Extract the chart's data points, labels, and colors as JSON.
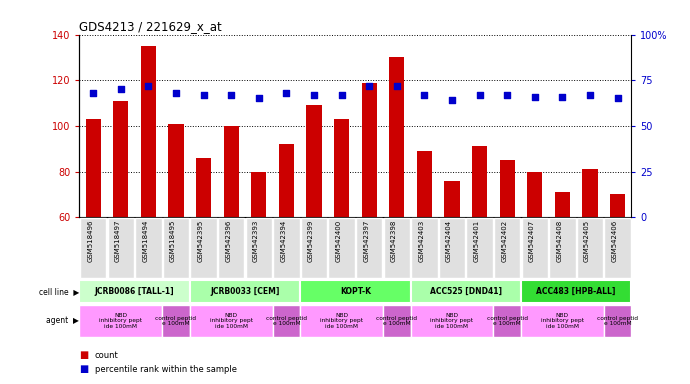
{
  "title": "GDS4213 / 221629_x_at",
  "samples": [
    "GSM518496",
    "GSM518497",
    "GSM518494",
    "GSM518495",
    "GSM542395",
    "GSM542396",
    "GSM542393",
    "GSM542394",
    "GSM542399",
    "GSM542400",
    "GSM542397",
    "GSM542398",
    "GSM542403",
    "GSM542404",
    "GSM542401",
    "GSM542402",
    "GSM542407",
    "GSM542408",
    "GSM542405",
    "GSM542406"
  ],
  "counts": [
    103,
    111,
    135,
    101,
    86,
    100,
    80,
    92,
    109,
    103,
    119,
    130,
    89,
    76,
    91,
    85,
    80,
    71,
    81,
    70
  ],
  "percentiles": [
    68,
    70,
    72,
    68,
    67,
    67,
    65,
    68,
    67,
    67,
    72,
    72,
    67,
    64,
    67,
    67,
    66,
    66,
    67,
    65
  ],
  "cell_lines": [
    {
      "label": "JCRB0086 [TALL-1]",
      "start": 0,
      "end": 4,
      "color": "#ccffcc"
    },
    {
      "label": "JCRB0033 [CEM]",
      "start": 4,
      "end": 8,
      "color": "#aaffaa"
    },
    {
      "label": "KOPT-K",
      "start": 8,
      "end": 12,
      "color": "#66ff66"
    },
    {
      "label": "ACC525 [DND41]",
      "start": 12,
      "end": 16,
      "color": "#aaffaa"
    },
    {
      "label": "ACC483 [HPB-ALL]",
      "start": 16,
      "end": 20,
      "color": "#33dd33"
    }
  ],
  "agents": [
    {
      "label": "NBD\ninhibitory pept\nide 100mM",
      "start": 0,
      "end": 3,
      "color": "#ff99ff"
    },
    {
      "label": "control peptid\ne 100mM",
      "start": 3,
      "end": 4,
      "color": "#cc66cc"
    },
    {
      "label": "NBD\ninhibitory pept\nide 100mM",
      "start": 4,
      "end": 7,
      "color": "#ff99ff"
    },
    {
      "label": "control peptid\ne 100mM",
      "start": 7,
      "end": 8,
      "color": "#cc66cc"
    },
    {
      "label": "NBD\ninhibitory pept\nide 100mM",
      "start": 8,
      "end": 11,
      "color": "#ff99ff"
    },
    {
      "label": "control peptid\ne 100mM",
      "start": 11,
      "end": 12,
      "color": "#cc66cc"
    },
    {
      "label": "NBD\ninhibitory pept\nide 100mM",
      "start": 12,
      "end": 15,
      "color": "#ff99ff"
    },
    {
      "label": "control peptid\ne 100mM",
      "start": 15,
      "end": 16,
      "color": "#cc66cc"
    },
    {
      "label": "NBD\ninhibitory pept\nide 100mM",
      "start": 16,
      "end": 19,
      "color": "#ff99ff"
    },
    {
      "label": "control peptid\ne 100mM",
      "start": 19,
      "end": 20,
      "color": "#cc66cc"
    }
  ],
  "ylim_left": [
    60,
    140
  ],
  "ylim_right": [
    0,
    100
  ],
  "yticks_left": [
    60,
    80,
    100,
    120,
    140
  ],
  "yticks_right": [
    0,
    25,
    50,
    75,
    100
  ],
  "bar_color": "#cc0000",
  "dot_color": "#0000cc",
  "bar_width": 0.55,
  "background_color": "#ffffff",
  "tick_bg_color": "#e0e0e0",
  "grid_color": "#000000"
}
